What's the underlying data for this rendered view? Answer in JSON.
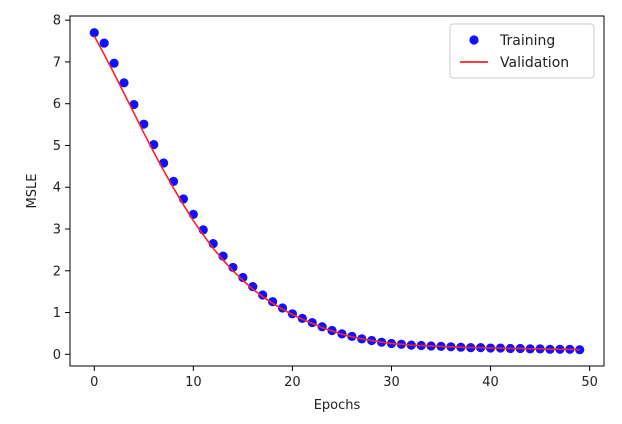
{
  "chart_data": {
    "type": "line",
    "title": "",
    "xlabel": "Epochs",
    "ylabel": "MSLE",
    "xlim": [
      -2.45,
      51.45
    ],
    "ylim": [
      -0.28,
      8.1
    ],
    "xticks": [
      0,
      10,
      20,
      30,
      40,
      50
    ],
    "yticks": [
      0,
      1,
      2,
      3,
      4,
      5,
      6,
      7,
      8
    ],
    "grid": false,
    "legend_position": "top-right",
    "series": [
      {
        "name": "Training",
        "style": "scatter",
        "color": "#1111ff",
        "x": [
          0,
          1,
          2,
          3,
          4,
          5,
          6,
          7,
          8,
          9,
          10,
          11,
          12,
          13,
          14,
          15,
          16,
          17,
          18,
          19,
          20,
          21,
          22,
          23,
          24,
          25,
          26,
          27,
          28,
          29,
          30,
          31,
          32,
          33,
          34,
          35,
          36,
          37,
          38,
          39,
          40,
          41,
          42,
          43,
          44,
          45,
          46,
          47,
          48,
          49
        ],
        "values": [
          7.7,
          7.45,
          6.97,
          6.5,
          5.98,
          5.51,
          5.02,
          4.58,
          4.14,
          3.72,
          3.35,
          2.98,
          2.65,
          2.35,
          2.08,
          1.84,
          1.62,
          1.42,
          1.26,
          1.11,
          0.97,
          0.86,
          0.76,
          0.66,
          0.57,
          0.49,
          0.43,
          0.37,
          0.33,
          0.29,
          0.26,
          0.24,
          0.22,
          0.21,
          0.2,
          0.19,
          0.18,
          0.17,
          0.16,
          0.16,
          0.15,
          0.15,
          0.14,
          0.14,
          0.13,
          0.13,
          0.12,
          0.12,
          0.12,
          0.11
        ]
      },
      {
        "name": "Validation",
        "style": "line",
        "color": "#ff2222",
        "x": [
          0,
          1,
          2,
          3,
          4,
          5,
          6,
          7,
          8,
          9,
          10,
          11,
          12,
          13,
          14,
          15,
          16,
          17,
          18,
          19,
          20,
          21,
          22,
          23,
          24,
          25,
          26,
          27,
          28,
          29,
          30,
          31,
          32,
          33,
          34,
          35,
          36,
          37,
          38,
          39,
          40,
          41,
          42,
          43,
          44,
          45,
          46,
          47,
          48,
          49
        ],
        "values": [
          7.62,
          7.18,
          6.72,
          6.25,
          5.78,
          5.3,
          4.84,
          4.4,
          3.98,
          3.58,
          3.2,
          2.86,
          2.54,
          2.26,
          2.0,
          1.77,
          1.56,
          1.38,
          1.22,
          1.08,
          0.95,
          0.84,
          0.74,
          0.64,
          0.56,
          0.48,
          0.42,
          0.37,
          0.33,
          0.29,
          0.26,
          0.24,
          0.22,
          0.21,
          0.2,
          0.19,
          0.18,
          0.17,
          0.16,
          0.16,
          0.15,
          0.15,
          0.14,
          0.14,
          0.13,
          0.13,
          0.12,
          0.12,
          0.12,
          0.11
        ]
      }
    ]
  }
}
